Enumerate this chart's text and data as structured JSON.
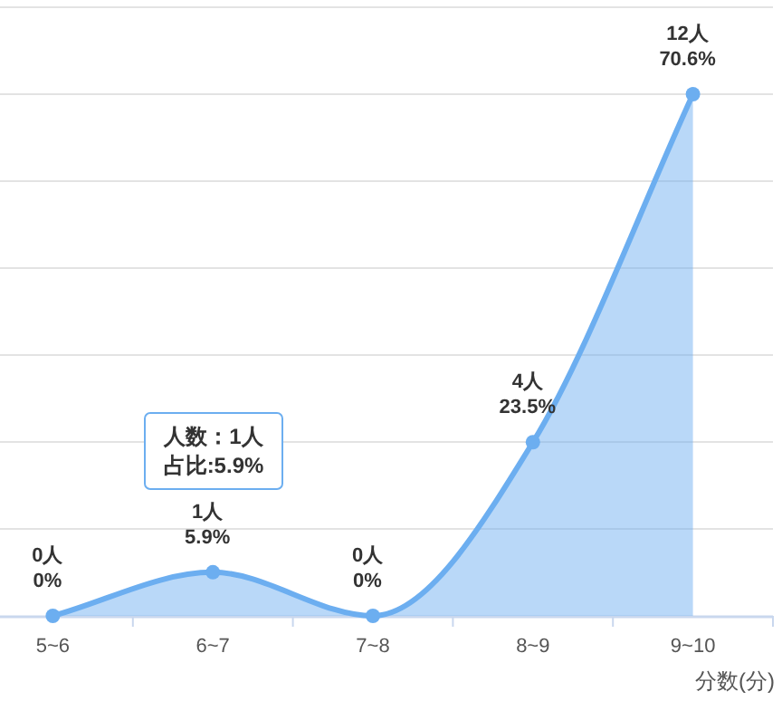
{
  "chart_data": {
    "type": "area",
    "categories": [
      "5~6",
      "6~7",
      "7~8",
      "8~9",
      "9~10"
    ],
    "xlabel": "分数(分)",
    "grid": "y",
    "marker": "circle",
    "series": [
      {
        "color": "#6caef0",
        "values": [
          0,
          5.9,
          0,
          23.5,
          70.6
        ],
        "value_labels": [
          "0人\n0%",
          "1人\n5.9%",
          "0人\n0%",
          "4人\n23.5%",
          "12人\n70.6%"
        ]
      }
    ],
    "annotations": [
      "人数：1人",
      "占比:5.9%"
    ]
  }
}
